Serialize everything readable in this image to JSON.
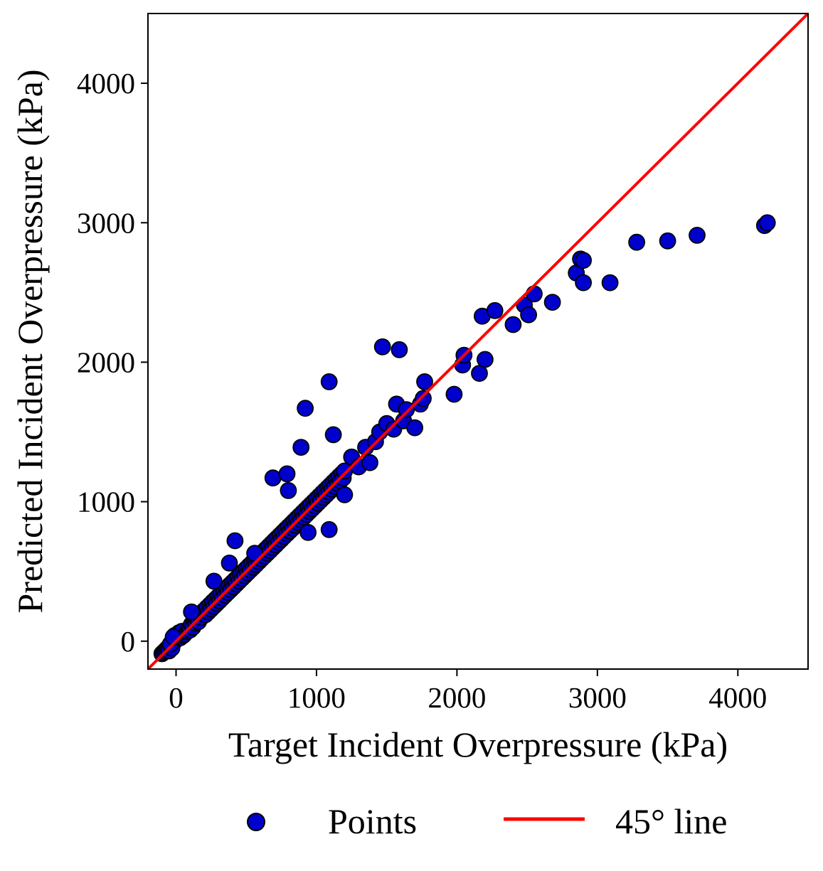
{
  "chart_data": {
    "type": "scatter",
    "title": "",
    "xlabel": "Target Incident Overpressure (kPa)",
    "ylabel": "Predicted Incident Overpressure (kPa)",
    "xlim": [
      -200,
      4500
    ],
    "ylim": [
      -200,
      4500
    ],
    "xticks": [
      0,
      1000,
      2000,
      3000,
      4000
    ],
    "yticks": [
      0,
      1000,
      2000,
      3000,
      4000
    ],
    "xtick_labels": [
      "0",
      "1000",
      "2000",
      "3000",
      "4000"
    ],
    "ytick_labels": [
      "0",
      "1000",
      "2000",
      "3000",
      "4000"
    ],
    "grid": false,
    "legend_position": "bottom-center, below axes",
    "series": [
      {
        "name": "Points",
        "kind": "scatter",
        "color": "#0000CD",
        "edge_color": "#000000",
        "points": [
          [
            -100,
            -90
          ],
          [
            -90,
            -80
          ],
          [
            -80,
            -70
          ],
          [
            -70,
            -60
          ],
          [
            -60,
            -50
          ],
          [
            -50,
            -40
          ],
          [
            -40,
            -30
          ],
          [
            -30,
            -20
          ],
          [
            -20,
            -10
          ],
          [
            -10,
            0
          ],
          [
            0,
            10
          ],
          [
            10,
            20
          ],
          [
            20,
            30
          ],
          [
            30,
            25
          ],
          [
            40,
            45
          ],
          [
            50,
            40
          ],
          [
            60,
            50
          ],
          [
            -50,
            -70
          ],
          [
            -30,
            -50
          ],
          [
            -10,
            40
          ],
          [
            20,
            60
          ],
          [
            40,
            70
          ],
          [
            -40,
            -20
          ],
          [
            -20,
            30
          ],
          [
            80,
            70
          ],
          [
            90,
            90
          ],
          [
            100,
            80
          ],
          [
            110,
            120
          ],
          [
            120,
            100
          ],
          [
            130,
            150
          ],
          [
            140,
            130
          ],
          [
            150,
            160
          ],
          [
            160,
            140
          ],
          [
            170,
            190
          ],
          [
            180,
            170
          ],
          [
            190,
            200
          ],
          [
            200,
            220
          ],
          [
            210,
            190
          ],
          [
            220,
            240
          ],
          [
            230,
            210
          ],
          [
            240,
            260
          ],
          [
            250,
            230
          ],
          [
            260,
            280
          ],
          [
            270,
            250
          ],
          [
            280,
            300
          ],
          [
            290,
            270
          ],
          [
            300,
            320
          ],
          [
            310,
            290
          ],
          [
            320,
            340
          ],
          [
            330,
            310
          ],
          [
            340,
            360
          ],
          [
            350,
            330
          ],
          [
            360,
            380
          ],
          [
            370,
            350
          ],
          [
            380,
            400
          ],
          [
            390,
            370
          ],
          [
            400,
            420
          ],
          [
            410,
            390
          ],
          [
            420,
            440
          ],
          [
            430,
            410
          ],
          [
            440,
            460
          ],
          [
            450,
            430
          ],
          [
            460,
            480
          ],
          [
            470,
            450
          ],
          [
            480,
            500
          ],
          [
            490,
            470
          ],
          [
            500,
            520
          ],
          [
            510,
            490
          ],
          [
            520,
            540
          ],
          [
            530,
            510
          ],
          [
            540,
            560
          ],
          [
            550,
            530
          ],
          [
            560,
            580
          ],
          [
            570,
            550
          ],
          [
            580,
            600
          ],
          [
            590,
            570
          ],
          [
            600,
            620
          ],
          [
            610,
            590
          ],
          [
            620,
            640
          ],
          [
            630,
            610
          ],
          [
            640,
            660
          ],
          [
            650,
            630
          ],
          [
            660,
            680
          ],
          [
            670,
            650
          ],
          [
            680,
            700
          ],
          [
            690,
            670
          ],
          [
            700,
            720
          ],
          [
            710,
            690
          ],
          [
            720,
            740
          ],
          [
            730,
            710
          ],
          [
            740,
            760
          ],
          [
            750,
            730
          ],
          [
            760,
            780
          ],
          [
            770,
            750
          ],
          [
            780,
            800
          ],
          [
            790,
            770
          ],
          [
            800,
            820
          ],
          [
            810,
            790
          ],
          [
            820,
            840
          ],
          [
            830,
            810
          ],
          [
            840,
            860
          ],
          [
            850,
            830
          ],
          [
            860,
            880
          ],
          [
            870,
            850
          ],
          [
            880,
            900
          ],
          [
            890,
            870
          ],
          [
            900,
            920
          ],
          [
            910,
            890
          ],
          [
            920,
            940
          ],
          [
            930,
            910
          ],
          [
            940,
            960
          ],
          [
            950,
            930
          ],
          [
            960,
            980
          ],
          [
            970,
            950
          ],
          [
            980,
            1000
          ],
          [
            990,
            970
          ],
          [
            1000,
            1020
          ],
          [
            1010,
            990
          ],
          [
            1020,
            1040
          ],
          [
            1030,
            1010
          ],
          [
            1040,
            1060
          ],
          [
            1050,
            1030
          ],
          [
            1060,
            1080
          ],
          [
            1070,
            1050
          ],
          [
            1080,
            1100
          ],
          [
            1090,
            1070
          ],
          [
            1100,
            1120
          ],
          [
            1110,
            1090
          ],
          [
            1120,
            1140
          ],
          [
            1130,
            1110
          ],
          [
            1140,
            1160
          ],
          [
            1150,
            1130
          ],
          [
            1160,
            1180
          ],
          [
            1170,
            1150
          ],
          [
            1180,
            1200
          ],
          [
            1190,
            1170
          ],
          [
            1200,
            1220
          ],
          [
            110,
            210
          ],
          [
            270,
            430
          ],
          [
            380,
            560
          ],
          [
            420,
            720
          ],
          [
            560,
            630
          ],
          [
            690,
            1170
          ],
          [
            790,
            1200
          ],
          [
            800,
            1080
          ],
          [
            890,
            1390
          ],
          [
            920,
            1670
          ],
          [
            940,
            780
          ],
          [
            1090,
            800
          ],
          [
            1090,
            1860
          ],
          [
            1120,
            1480
          ],
          [
            1200,
            1050
          ],
          [
            1250,
            1320
          ],
          [
            1300,
            1250
          ],
          [
            1350,
            1390
          ],
          [
            1380,
            1280
          ],
          [
            1420,
            1430
          ],
          [
            1450,
            1500
          ],
          [
            1470,
            2110
          ],
          [
            1500,
            1560
          ],
          [
            1550,
            1520
          ],
          [
            1570,
            1700
          ],
          [
            1590,
            2090
          ],
          [
            1620,
            1580
          ],
          [
            1640,
            1660
          ],
          [
            1700,
            1530
          ],
          [
            1740,
            1700
          ],
          [
            1760,
            1740
          ],
          [
            1770,
            1860
          ],
          [
            1980,
            1770
          ],
          [
            2040,
            1980
          ],
          [
            2050,
            2050
          ],
          [
            2160,
            1920
          ],
          [
            2180,
            2330
          ],
          [
            2200,
            2020
          ],
          [
            2270,
            2370
          ],
          [
            2400,
            2270
          ],
          [
            2480,
            2410
          ],
          [
            2510,
            2340
          ],
          [
            2550,
            2490
          ],
          [
            2680,
            2430
          ],
          [
            2850,
            2640
          ],
          [
            2880,
            2740
          ],
          [
            2900,
            2730
          ],
          [
            2900,
            2570
          ],
          [
            3090,
            2570
          ],
          [
            3280,
            2860
          ],
          [
            3500,
            2870
          ],
          [
            3710,
            2910
          ],
          [
            4190,
            2980
          ],
          [
            4210,
            3000
          ]
        ]
      },
      {
        "name": "45° line",
        "kind": "line",
        "color": "#FF0000",
        "points": [
          [
            -200,
            -200
          ],
          [
            4500,
            4500
          ]
        ]
      }
    ]
  }
}
